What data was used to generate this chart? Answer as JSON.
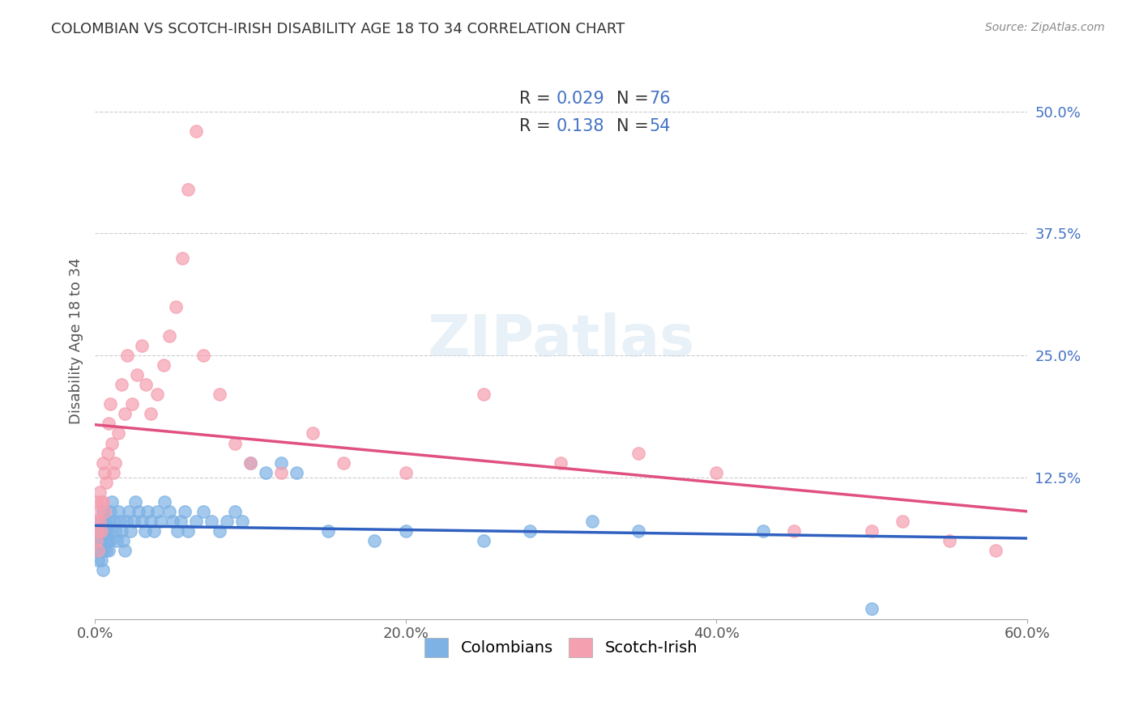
{
  "title": "COLOMBIAN VS SCOTCH-IRISH DISABILITY AGE 18 TO 34 CORRELATION CHART",
  "source": "Source: ZipAtlas.com",
  "xlabel": "",
  "ylabel": "Disability Age 18 to 34",
  "xlim": [
    0,
    0.6
  ],
  "ylim": [
    -0.02,
    0.55
  ],
  "xtick_labels": [
    "0.0%",
    "20.0%",
    "40.0%",
    "60.0%"
  ],
  "xtick_vals": [
    0.0,
    0.2,
    0.4,
    0.6
  ],
  "ytick_labels_right": [
    "12.5%",
    "25.0%",
    "37.5%",
    "50.0%"
  ],
  "ytick_vals_right": [
    0.125,
    0.25,
    0.375,
    0.5
  ],
  "legend_r1": "R = 0.029",
  "legend_n1": "N = 76",
  "legend_r2": "R =  0.138",
  "legend_n2": "N = 54",
  "blue_color": "#7EB2E4",
  "pink_color": "#F4A0B0",
  "line_blue": "#3060C0",
  "line_pink": "#E05080",
  "legend_label1": "Colombians",
  "legend_label2": "Scotch-Irish",
  "watermark": "ZIPatlas",
  "colombian_x": [
    0.001,
    0.001,
    0.001,
    0.002,
    0.002,
    0.002,
    0.002,
    0.003,
    0.003,
    0.003,
    0.004,
    0.004,
    0.004,
    0.005,
    0.005,
    0.005,
    0.005,
    0.006,
    0.006,
    0.007,
    0.007,
    0.008,
    0.008,
    0.009,
    0.009,
    0.01,
    0.01,
    0.011,
    0.012,
    0.013,
    0.014,
    0.015,
    0.016,
    0.017,
    0.018,
    0.019,
    0.02,
    0.022,
    0.023,
    0.025,
    0.026,
    0.028,
    0.03,
    0.032,
    0.034,
    0.036,
    0.038,
    0.04,
    0.042,
    0.045,
    0.048,
    0.05,
    0.053,
    0.055,
    0.058,
    0.06,
    0.065,
    0.07,
    0.075,
    0.08,
    0.085,
    0.09,
    0.095,
    0.1,
    0.11,
    0.12,
    0.13,
    0.15,
    0.18,
    0.2,
    0.25,
    0.28,
    0.32,
    0.35,
    0.43,
    0.5
  ],
  "colombian_y": [
    0.07,
    0.06,
    0.05,
    0.08,
    0.06,
    0.05,
    0.04,
    0.07,
    0.06,
    0.05,
    0.08,
    0.06,
    0.04,
    0.09,
    0.07,
    0.05,
    0.03,
    0.08,
    0.06,
    0.07,
    0.05,
    0.08,
    0.06,
    0.07,
    0.05,
    0.09,
    0.06,
    0.1,
    0.08,
    0.07,
    0.06,
    0.09,
    0.08,
    0.07,
    0.06,
    0.05,
    0.08,
    0.09,
    0.07,
    0.08,
    0.1,
    0.09,
    0.08,
    0.07,
    0.09,
    0.08,
    0.07,
    0.09,
    0.08,
    0.1,
    0.09,
    0.08,
    0.07,
    0.08,
    0.09,
    0.07,
    0.08,
    0.09,
    0.08,
    0.07,
    0.08,
    0.09,
    0.08,
    0.14,
    0.13,
    0.14,
    0.13,
    0.07,
    0.06,
    0.07,
    0.06,
    0.07,
    0.08,
    0.07,
    0.07,
    -0.01
  ],
  "scotch_x": [
    0.001,
    0.001,
    0.001,
    0.002,
    0.002,
    0.002,
    0.003,
    0.003,
    0.004,
    0.004,
    0.005,
    0.005,
    0.006,
    0.006,
    0.007,
    0.008,
    0.009,
    0.01,
    0.011,
    0.012,
    0.013,
    0.015,
    0.017,
    0.019,
    0.021,
    0.024,
    0.027,
    0.03,
    0.033,
    0.036,
    0.04,
    0.044,
    0.048,
    0.052,
    0.056,
    0.06,
    0.065,
    0.07,
    0.08,
    0.09,
    0.1,
    0.12,
    0.14,
    0.16,
    0.2,
    0.25,
    0.3,
    0.35,
    0.4,
    0.45,
    0.5,
    0.52,
    0.55,
    0.58
  ],
  "scotch_y": [
    0.1,
    0.08,
    0.06,
    0.09,
    0.07,
    0.05,
    0.11,
    0.08,
    0.1,
    0.07,
    0.14,
    0.1,
    0.13,
    0.09,
    0.12,
    0.15,
    0.18,
    0.2,
    0.16,
    0.13,
    0.14,
    0.17,
    0.22,
    0.19,
    0.25,
    0.2,
    0.23,
    0.26,
    0.22,
    0.19,
    0.21,
    0.24,
    0.27,
    0.3,
    0.35,
    0.42,
    0.48,
    0.25,
    0.21,
    0.16,
    0.14,
    0.13,
    0.17,
    0.14,
    0.13,
    0.21,
    0.14,
    0.15,
    0.13,
    0.07,
    0.07,
    0.08,
    0.06,
    0.05
  ]
}
